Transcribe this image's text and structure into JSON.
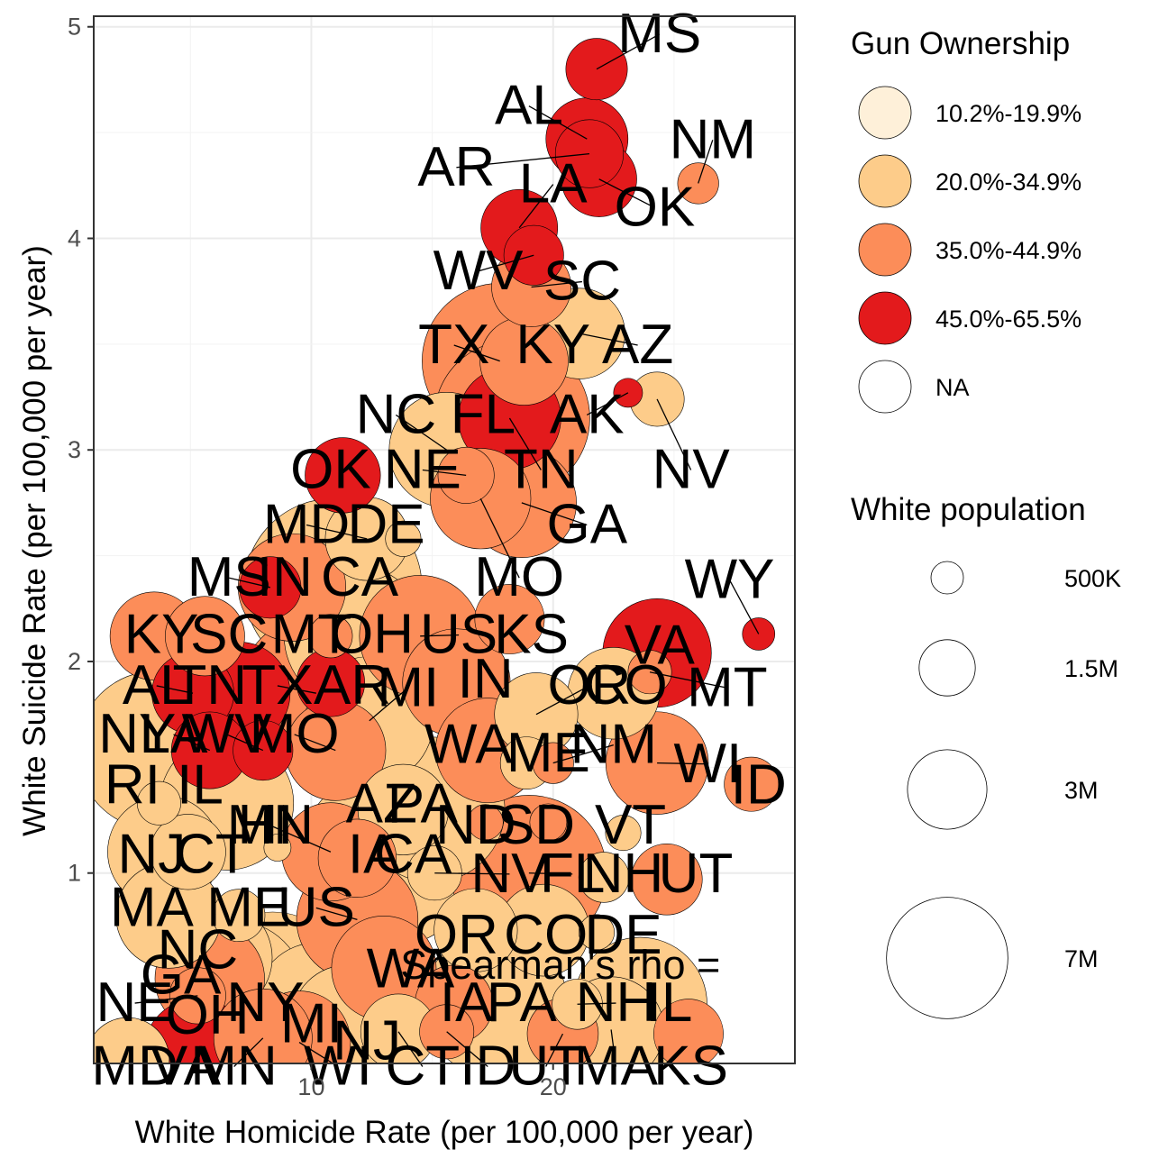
{
  "chart_data": {
    "type": "scatter",
    "xlabel": "White Homicide Rate (per 100,000 per year)",
    "ylabel": "White Suicide Rate (per 100,000 per year)",
    "xlim": [
      1,
      30
    ],
    "ylim": [
      0.1,
      5.05
    ],
    "x_ticks": [
      10,
      20
    ],
    "y_ticks": [
      1,
      2,
      3,
      4,
      5
    ],
    "grid": true,
    "fill_legend": {
      "title": "Gun Ownership",
      "entries": [
        {
          "label": "10.2%-19.9%",
          "color": "#FEF0D9"
        },
        {
          "label": "20.0%-34.9%",
          "color": "#FDCC8A"
        },
        {
          "label": "35.0%-44.9%",
          "color": "#FC8D59"
        },
        {
          "label": "45.0%-65.5%",
          "color": "#E31A1C"
        },
        {
          "label": "NA",
          "color": "#FFFFFF"
        }
      ]
    },
    "size_legend": {
      "title": "White population",
      "entries": [
        {
          "label": "500K",
          "value": 500000
        },
        {
          "label": "1.5M",
          "value": 1500000
        },
        {
          "label": "3M",
          "value": 3000000
        },
        {
          "label": "7M",
          "value": 7000000
        }
      ]
    },
    "annotation": {
      "text": "Spearman's rho =",
      "x": 20.3,
      "y": 0.5
    },
    "points": [
      {
        "label": "MS",
        "x": 21.8,
        "y": 4.8,
        "pop": 1800000,
        "group": 3,
        "lx": 24.4,
        "ly": 4.88
      },
      {
        "label": "AL",
        "x": 21.4,
        "y": 4.47,
        "pop": 3200000,
        "group": 3,
        "lx": 19.0,
        "ly": 4.54
      },
      {
        "label": "AR",
        "x": 21.5,
        "y": 4.4,
        "pop": 2200000,
        "group": 3,
        "lx": 16.0,
        "ly": 4.25
      },
      {
        "label": "OK",
        "x": 21.9,
        "y": 4.28,
        "pop": 2700000,
        "group": 3,
        "lx": 24.2,
        "ly": 4.06
      },
      {
        "label": "NM",
        "x": 26.0,
        "y": 4.26,
        "pop": 800000,
        "group": 2,
        "lx": 26.6,
        "ly": 4.38
      },
      {
        "label": "LA",
        "x": 18.6,
        "y": 4.05,
        "pop": 2800000,
        "group": 3,
        "lx": 20.0,
        "ly": 4.17
      },
      {
        "label": "WV",
        "x": 19.2,
        "y": 3.92,
        "pop": 1700000,
        "group": 3,
        "lx": 16.9,
        "ly": 3.76
      },
      {
        "label": "SC",
        "x": 19.1,
        "y": 3.77,
        "pop": 3000000,
        "group": 2,
        "lx": 21.2,
        "ly": 3.71
      },
      {
        "label": "AZ",
        "x": 21.1,
        "y": 3.55,
        "pop": 3900000,
        "group": 1,
        "lx": 23.5,
        "ly": 3.41
      },
      {
        "label": "TX",
        "x": 17.8,
        "y": 3.42,
        "pop": 11500000,
        "group": 2,
        "lx": 15.9,
        "ly": 3.41
      },
      {
        "label": "KY",
        "x": 18.8,
        "y": 3.42,
        "pop": 3700000,
        "group": 2,
        "lx": 20.0,
        "ly": 3.41
      },
      {
        "label": "AK",
        "x": 23.1,
        "y": 3.27,
        "pop": 400000,
        "group": 3,
        "lx": 21.4,
        "ly": 3.08
      },
      {
        "label": "NV",
        "x": 24.3,
        "y": 3.24,
        "pop": 1400000,
        "group": 1,
        "lx": 25.7,
        "ly": 2.82
      },
      {
        "label": "TN",
        "x": 18.2,
        "y": 3.15,
        "pop": 5000000,
        "group": 3,
        "lx": 19.5,
        "ly": 2.82
      },
      {
        "label": "FL",
        "x": 18.3,
        "y": 3.15,
        "pop": 11500000,
        "group": 2,
        "lx": 17.1,
        "ly": 3.08
      },
      {
        "label": "NC",
        "x": 15.6,
        "y": 3.0,
        "pop": 6300000,
        "group": 1,
        "lx": 13.5,
        "ly": 3.08
      },
      {
        "label": "NE",
        "x": 16.4,
        "y": 2.88,
        "pop": 1500000,
        "group": 2,
        "lx": 14.6,
        "ly": 2.82
      },
      {
        "label": "OK",
        "x": 11.3,
        "y": 2.88,
        "pop": 2700000,
        "group": 3,
        "lx": 10.8,
        "ly": 2.82
      },
      {
        "label": "GA",
        "x": 18.7,
        "y": 2.75,
        "pop": 5700000,
        "group": 2,
        "lx": 21.4,
        "ly": 2.56
      },
      {
        "label": "MO",
        "x": 17.0,
        "y": 2.77,
        "pop": 4800000,
        "group": 2,
        "lx": 18.6,
        "ly": 2.31
      },
      {
        "label": "MD",
        "x": 12.3,
        "y": 2.58,
        "pop": 3300000,
        "group": 1,
        "lx": 9.8,
        "ly": 2.56
      },
      {
        "label": "DE",
        "x": 13.8,
        "y": 2.58,
        "pop": 600000,
        "group": 1,
        "lx": 13.1,
        "ly": 2.56
      },
      {
        "label": "MS",
        "x": 8.3,
        "y": 2.35,
        "pop": 1800000,
        "group": 3,
        "lx": 6.6,
        "ly": 2.31
      },
      {
        "label": "IN",
        "x": 9.2,
        "y": 2.35,
        "pop": 5500000,
        "group": 2,
        "lx": 8.9,
        "ly": 2.31
      },
      {
        "label": "CA",
        "x": 10.9,
        "y": 2.35,
        "pop": 15000000,
        "group": 1,
        "lx": 12.0,
        "ly": 2.31
      },
      {
        "label": "KY",
        "x": 3.5,
        "y": 2.12,
        "pop": 3700000,
        "group": 2,
        "lx": 3.8,
        "ly": 2.04
      },
      {
        "label": "SC",
        "x": 5.6,
        "y": 2.12,
        "pop": 3000000,
        "group": 2,
        "lx": 6.6,
        "ly": 2.04
      },
      {
        "label": "MT",
        "x": 10.8,
        "y": 2.12,
        "pop": 900000,
        "group": 2,
        "lx": 10.0,
        "ly": 2.04
      },
      {
        "label": "OH",
        "x": 11.8,
        "y": 2.12,
        "pop": 9500000,
        "group": 1,
        "lx": 12.5,
        "ly": 2.04
      },
      {
        "label": "US",
        "x": 14.5,
        "y": 2.12,
        "pop": 7000000,
        "group": 2,
        "lx": 16.1,
        "ly": 2.04
      },
      {
        "label": "KS",
        "x": 18.2,
        "y": 2.2,
        "pop": 2300000,
        "group": 2,
        "lx": 19.1,
        "ly": 2.04
      },
      {
        "label": "VA",
        "x": 24.3,
        "y": 2.04,
        "pop": 5600000,
        "group": 3,
        "lx": 24.4,
        "ly": 1.99
      },
      {
        "label": "WY",
        "x": 28.5,
        "y": 2.13,
        "pop": 500000,
        "group": 3,
        "lx": 27.3,
        "ly": 2.3
      },
      {
        "label": "AL",
        "x": 5.1,
        "y": 1.85,
        "pop": 3200000,
        "group": 3,
        "lx": 3.6,
        "ly": 1.8
      },
      {
        "label": "TN",
        "x": 7.0,
        "y": 1.85,
        "pop": 5000000,
        "group": 3,
        "lx": 5.8,
        "ly": 1.8
      },
      {
        "label": "TX",
        "x": 10.2,
        "y": 1.85,
        "pop": 11500000,
        "group": 2,
        "lx": 8.6,
        "ly": 1.8
      },
      {
        "label": "AR",
        "x": 10.8,
        "y": 1.9,
        "pop": 2200000,
        "group": 3,
        "lx": 11.7,
        "ly": 1.8
      },
      {
        "label": "MI",
        "x": 12.4,
        "y": 1.72,
        "pop": 7800000,
        "group": 1,
        "lx": 14.0,
        "ly": 1.79
      },
      {
        "label": "IN",
        "x": 16.0,
        "y": 1.9,
        "pop": 5500000,
        "group": 2,
        "lx": 17.2,
        "ly": 1.83
      },
      {
        "label": "OR",
        "x": 19.3,
        "y": 1.75,
        "pop": 3300000,
        "group": 1,
        "lx": 21.5,
        "ly": 1.8
      },
      {
        "label": "CO",
        "x": 22.5,
        "y": 1.85,
        "pop": 4000000,
        "group": 1,
        "lx": 23.0,
        "ly": 1.8
      },
      {
        "label": "MT",
        "x": 24.0,
        "y": 1.95,
        "pop": 900000,
        "group": 2,
        "lx": 27.2,
        "ly": 1.79
      },
      {
        "label": "NY",
        "x": 3.6,
        "y": 1.58,
        "pop": 12000000,
        "group": 1,
        "lx": 2.8,
        "ly": 1.57
      },
      {
        "label": "LA",
        "x": 5.8,
        "y": 1.58,
        "pop": 2800000,
        "group": 3,
        "lx": 4.3,
        "ly": 1.57
      },
      {
        "label": "WV",
        "x": 8.0,
        "y": 1.58,
        "pop": 1700000,
        "group": 3,
        "lx": 6.5,
        "ly": 1.57
      },
      {
        "label": "MO",
        "x": 11.0,
        "y": 1.58,
        "pop": 4800000,
        "group": 2,
        "lx": 9.3,
        "ly": 1.57
      },
      {
        "label": "WA",
        "x": 17.3,
        "y": 1.58,
        "pop": 5200000,
        "group": 2,
        "lx": 16.5,
        "ly": 1.52
      },
      {
        "label": "ME",
        "x": 18.9,
        "y": 1.52,
        "pop": 1300000,
        "group": 1,
        "lx": 19.8,
        "ly": 1.48
      },
      {
        "label": "NM",
        "x": 20.0,
        "y": 1.52,
        "pop": 800000,
        "group": 2,
        "lx": 22.5,
        "ly": 1.52
      },
      {
        "label": "WI",
        "x": 24.3,
        "y": 1.52,
        "pop": 5000000,
        "group": 2,
        "lx": 26.4,
        "ly": 1.43
      },
      {
        "label": "ID",
        "x": 28.2,
        "y": 1.42,
        "pop": 1400000,
        "group": 2,
        "lx": 28.5,
        "ly": 1.33
      },
      {
        "label": "RI",
        "x": 3.7,
        "y": 1.33,
        "pop": 900000,
        "group": 1,
        "lx": 2.6,
        "ly": 1.33
      },
      {
        "label": "IL",
        "x": 6.5,
        "y": 1.33,
        "pop": 8500000,
        "group": 1,
        "lx": 5.4,
        "ly": 1.33
      },
      {
        "label": "AZ",
        "x": 13.8,
        "y": 1.3,
        "pop": 3900000,
        "group": 1,
        "lx": 12.9,
        "ly": 1.24
      },
      {
        "label": "PA",
        "x": 15.0,
        "y": 1.3,
        "pop": 10000000,
        "group": 1,
        "lx": 14.6,
        "ly": 1.24
      },
      {
        "label": "ND",
        "x": 17.2,
        "y": 1.24,
        "pop": 600000,
        "group": 2,
        "lx": 16.8,
        "ly": 1.14
      },
      {
        "label": "SD",
        "x": 19.8,
        "y": 1.24,
        "pop": 650000,
        "group": 2,
        "lx": 19.3,
        "ly": 1.14
      },
      {
        "label": "VT",
        "x": 22.9,
        "y": 1.19,
        "pop": 600000,
        "group": 1,
        "lx": 23.2,
        "ly": 1.14
      },
      {
        "label": "HI",
        "x": 8.6,
        "y": 1.12,
        "pop": 350000,
        "group": 1,
        "lx": 8.1,
        "ly": 1.14
      },
      {
        "label": "MN",
        "x": 10.8,
        "y": 1.1,
        "pop": 4600000,
        "group": 2,
        "lx": 8.3,
        "ly": 1.14
      },
      {
        "label": "NJ",
        "x": 3.9,
        "y": 1.1,
        "pop": 6000000,
        "group": 1,
        "lx": 3.4,
        "ly": 1.0
      },
      {
        "label": "CT",
        "x": 4.9,
        "y": 1.1,
        "pop": 2700000,
        "group": 1,
        "lx": 5.9,
        "ly": 1.0
      },
      {
        "label": "IA",
        "x": 11.9,
        "y": 1.07,
        "pop": 2900000,
        "group": 2,
        "lx": 12.6,
        "ly": 1.0
      },
      {
        "label": "CA",
        "x": 13.2,
        "y": 1.07,
        "pop": 15000000,
        "group": 1,
        "lx": 14.2,
        "ly": 1.0
      },
      {
        "label": "NV",
        "x": 15.1,
        "y": 1.0,
        "pop": 1400000,
        "group": 1,
        "lx": 18.2,
        "ly": 0.91
      },
      {
        "label": "FL",
        "x": 19.0,
        "y": 1.0,
        "pop": 11500000,
        "group": 2,
        "lx": 20.8,
        "ly": 0.91
      },
      {
        "label": "NH",
        "x": 22.1,
        "y": 0.98,
        "pop": 1200000,
        "group": 1,
        "lx": 22.9,
        "ly": 0.91
      },
      {
        "label": "UT",
        "x": 24.7,
        "y": 0.97,
        "pop": 2400000,
        "group": 2,
        "lx": 25.9,
        "ly": 0.91
      },
      {
        "label": "MA",
        "x": 4.1,
        "y": 0.8,
        "pop": 5300000,
        "group": 1,
        "lx": 3.4,
        "ly": 0.75
      },
      {
        "label": "ME",
        "x": 7.0,
        "y": 0.8,
        "pop": 1300000,
        "group": 1,
        "lx": 7.4,
        "ly": 0.75
      },
      {
        "label": "US",
        "x": 11.9,
        "y": 0.78,
        "pop": 7000000,
        "group": 2,
        "lx": 10.2,
        "ly": 0.75
      },
      {
        "label": "OR",
        "x": 16.8,
        "y": 0.73,
        "pop": 3300000,
        "group": 1,
        "lx": 16.0,
        "ly": 0.62
      },
      {
        "label": "CO",
        "x": 19.6,
        "y": 0.73,
        "pop": 4000000,
        "group": 1,
        "lx": 19.7,
        "ly": 0.62
      },
      {
        "label": "DE",
        "x": 21.8,
        "y": 0.72,
        "pop": 600000,
        "group": 1,
        "lx": 22.9,
        "ly": 0.62
      },
      {
        "label": "NC",
        "x": 6.0,
        "y": 0.6,
        "pop": 6300000,
        "group": 1,
        "lx": 5.3,
        "ly": 0.55
      },
      {
        "label": "GA",
        "x": 5.8,
        "y": 0.5,
        "pop": 5700000,
        "group": 2,
        "lx": 4.6,
        "ly": 0.43
      },
      {
        "label": "WA",
        "x": 13.0,
        "y": 0.55,
        "pop": 5200000,
        "group": 2,
        "lx": 14.1,
        "ly": 0.46
      },
      {
        "label": "NE",
        "x": 5.3,
        "y": 0.42,
        "pop": 1500000,
        "group": 2,
        "lx": 2.7,
        "ly": 0.3
      },
      {
        "label": "OH",
        "x": 6.8,
        "y": 0.44,
        "pop": 9500000,
        "group": 1,
        "lx": 5.7,
        "ly": 0.24
      },
      {
        "label": "NY",
        "x": 8.4,
        "y": 0.44,
        "pop": 12000000,
        "group": 1,
        "lx": 8.1,
        "ly": 0.3
      },
      {
        "label": "IA",
        "x": 15.9,
        "y": 0.38,
        "pop": 2900000,
        "group": 2,
        "lx": 16.4,
        "ly": 0.3
      },
      {
        "label": "PA",
        "x": 17.6,
        "y": 0.38,
        "pop": 10000000,
        "group": 1,
        "lx": 18.7,
        "ly": 0.3
      },
      {
        "label": "NH",
        "x": 21.0,
        "y": 0.38,
        "pop": 1200000,
        "group": 1,
        "lx": 22.6,
        "ly": 0.3
      },
      {
        "label": "IL",
        "x": 23.6,
        "y": 0.38,
        "pop": 8500000,
        "group": 1,
        "lx": 24.8,
        "ly": 0.3
      },
      {
        "label": "MI",
        "x": 10.3,
        "y": 0.37,
        "pop": 7800000,
        "group": 1,
        "lx": 10.0,
        "ly": 0.2
      },
      {
        "label": "NJ",
        "x": 11.5,
        "y": 0.3,
        "pop": 6000000,
        "group": 1,
        "lx": 12.3,
        "ly": 0.12
      },
      {
        "label": "MD",
        "x": 2.4,
        "y": 0.12,
        "pop": 3300000,
        "group": 1,
        "lx": 2.7,
        "ly": 0.0
      },
      {
        "label": "VA",
        "x": 5.3,
        "y": 0.15,
        "pop": 5600000,
        "group": 3,
        "lx": 4.8,
        "ly": 0.0
      },
      {
        "label": "MN",
        "x": 8.0,
        "y": 0.22,
        "pop": 4600000,
        "group": 2,
        "lx": 6.8,
        "ly": 0.0
      },
      {
        "label": "WI",
        "x": 9.5,
        "y": 0.2,
        "pop": 5000000,
        "group": 2,
        "lx": 11.1,
        "ly": 0.0
      },
      {
        "label": "CT",
        "x": 13.6,
        "y": 0.25,
        "pop": 2700000,
        "group": 1,
        "lx": 14.6,
        "ly": 0.0
      },
      {
        "label": "ID",
        "x": 15.6,
        "y": 0.25,
        "pop": 1400000,
        "group": 2,
        "lx": 17.3,
        "ly": 0.0
      },
      {
        "label": "UT",
        "x": 20.4,
        "y": 0.24,
        "pop": 2400000,
        "group": 2,
        "lx": 19.7,
        "ly": 0.0
      },
      {
        "label": "MA",
        "x": 22.4,
        "y": 0.26,
        "pop": 5300000,
        "group": 1,
        "lx": 22.6,
        "ly": 0.0
      },
      {
        "label": "KS",
        "x": 25.6,
        "y": 0.24,
        "pop": 2300000,
        "group": 2,
        "lx": 25.7,
        "ly": 0.0
      }
    ]
  }
}
